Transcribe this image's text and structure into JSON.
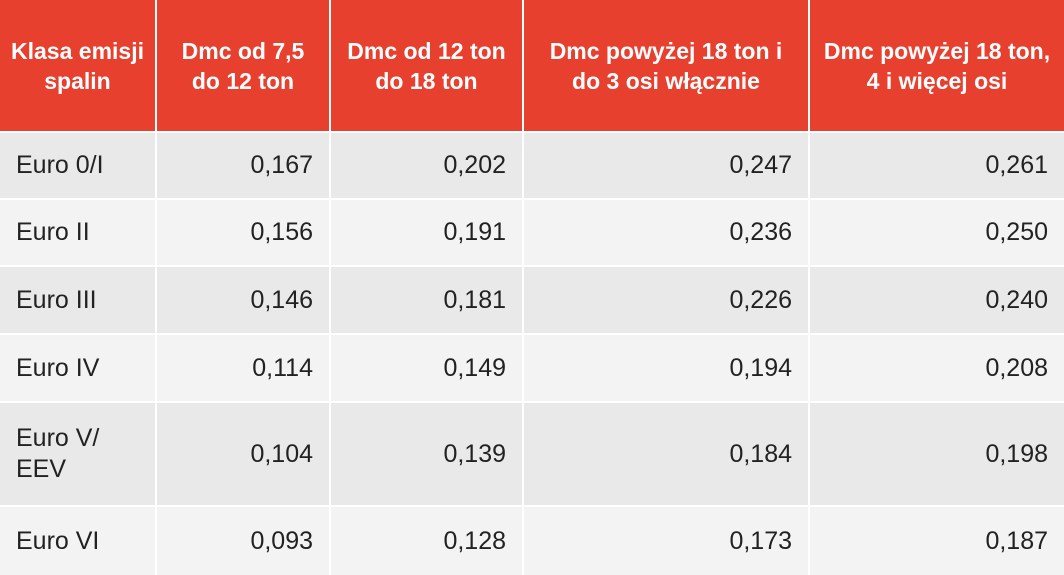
{
  "table": {
    "header": [
      "Klasa emisji spalin",
      "Dmc od 7,5 do 12 ton",
      "Dmc od 12 ton do 18 ton",
      "Dmc powyżej 18 ton i do 3 osi włącznie",
      "Dmc powyżej 18 ton, 4 i więcej osi"
    ],
    "rows": [
      [
        "Euro 0/I",
        "0,167",
        "0,202",
        "0,247",
        "0,261"
      ],
      [
        "Euro II",
        "0,156",
        "0,191",
        "0,236",
        "0,250"
      ],
      [
        "Euro III",
        "0,146",
        "0,181",
        "0,226",
        "0,240"
      ],
      [
        "Euro IV",
        "0,114",
        "0,149",
        "0,194",
        "0,208"
      ],
      [
        "Euro V/ EEV",
        "0,104",
        "0,139",
        "0,184",
        "0,198"
      ],
      [
        "Euro VI",
        "0,093",
        "0,128",
        "0,173",
        "0,187"
      ]
    ]
  }
}
